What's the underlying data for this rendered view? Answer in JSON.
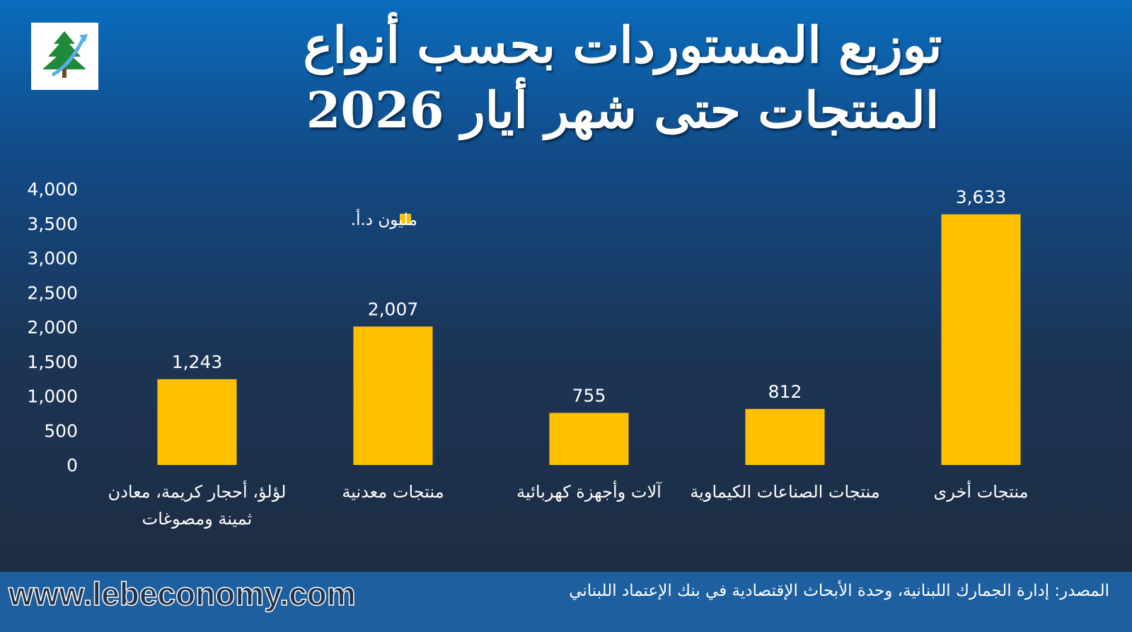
{
  "chart_data": {
    "type": "bar",
    "title": "توزيع المستوردات بحسب أنواع المنتجات حتى شهر أيار 2026",
    "categories": [
      "لؤلؤ، أحجار كريمة، معادن ثمينة ومصوغات",
      "منتجات معدنية",
      "آلات وأجهزة كهربائية",
      "منتجات الصناعات الكيماوية",
      "منتجات أخرى"
    ],
    "series": [
      {
        "name": "مليون د.أ.",
        "color": "#ffc000",
        "values": [
          1243,
          2007,
          755,
          812,
          3633
        ],
        "value_labels": [
          "1,243",
          "2,007",
          "755",
          "812",
          "3,633"
        ]
      }
    ],
    "ylim": [
      0,
      4000
    ],
    "yticks": [
      0,
      500,
      {
        "value": 1000,
        "label": "1,000"
      },
      {
        "value": 1500,
        "label": "1,500"
      },
      {
        "value": 2000,
        "label": "2,000"
      },
      {
        "value": 2500,
        "label": "2,500"
      },
      {
        "value": 3000,
        "label": "3,000"
      },
      {
        "value": 3500,
        "label": "3,500"
      },
      {
        "value": 4000,
        "label": "4,000"
      }
    ],
    "grid": false,
    "legend": "top"
  },
  "source": "المصدر: إدارة الجمارك اللبنانية، وحدة الأبحاث الإقتصادية في بنك الإعتماد اللبناني",
  "website": "www.lebeconomy.com"
}
